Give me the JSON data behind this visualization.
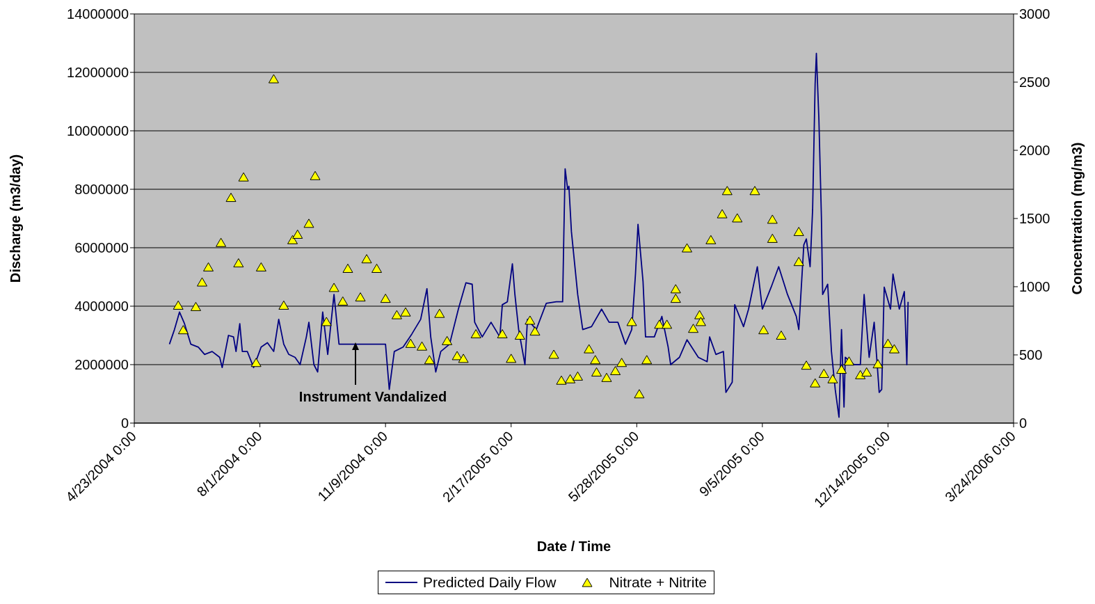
{
  "chart_data": {
    "type": "line",
    "xlabel": "Date / Time",
    "ylabel": "Discharge (m3/day)",
    "y2label": "Concentration (mg/m3)",
    "xlim": [
      "2004-04-23",
      "2006-03-24"
    ],
    "xticks": [
      {
        "value": "2004-04-23",
        "label": "4/23/2004 0:00"
      },
      {
        "value": "2004-08-01",
        "label": "8/1/2004 0:00"
      },
      {
        "value": "2004-11-09",
        "label": "11/9/2004 0:00"
      },
      {
        "value": "2005-02-17",
        "label": "2/17/2005 0:00"
      },
      {
        "value": "2005-05-28",
        "label": "5/28/2005 0:00"
      },
      {
        "value": "2005-09-05",
        "label": "9/5/2005 0:00"
      },
      {
        "value": "2005-12-14",
        "label": "12/14/2005 0:00"
      },
      {
        "value": "2006-03-24",
        "label": "3/24/2006 0:00"
      }
    ],
    "ylim": [
      0,
      14000000
    ],
    "yticks": [
      0,
      2000000,
      4000000,
      6000000,
      8000000,
      10000000,
      12000000,
      14000000
    ],
    "y2lim": [
      0,
      3000
    ],
    "y2ticks": [
      0,
      500,
      1000,
      1500,
      2000,
      2500,
      3000
    ],
    "grid": "y",
    "legend": "bottom",
    "annotations": [
      "Instrument Vandalized"
    ],
    "series": [
      {
        "name": "Predicted Daily Flow",
        "type": "line",
        "color": "#000080",
        "line_style": "solid",
        "x": [
          "2004-05-21",
          "2004-05-25",
          "2004-05-29",
          "2004-06-02",
          "2004-06-07",
          "2004-06-13",
          "2004-06-18",
          "2004-06-24",
          "2004-06-30",
          "2004-07-02",
          "2004-07-07",
          "2004-07-11",
          "2004-07-13",
          "2004-07-16",
          "2004-07-18",
          "2004-07-22",
          "2004-07-27",
          "2004-08-02",
          "2004-08-07",
          "2004-08-12",
          "2004-08-16",
          "2004-08-20",
          "2004-08-24",
          "2004-08-29",
          "2004-09-02",
          "2004-09-07",
          "2004-09-09",
          "2004-09-13",
          "2004-09-16",
          "2004-09-20",
          "2004-09-24",
          "2004-09-29",
          "2004-10-03",
          "2004-11-09",
          "2004-11-12",
          "2004-11-16",
          "2004-11-23",
          "2004-11-30",
          "2004-12-07",
          "2004-12-12",
          "2004-12-15",
          "2004-12-19",
          "2004-12-23",
          "2004-12-30",
          "2005-01-06",
          "2005-01-12",
          "2005-01-17",
          "2005-01-19",
          "2005-01-25",
          "2005-02-01",
          "2005-02-08",
          "2005-02-10",
          "2005-02-14",
          "2005-02-18",
          "2005-02-20",
          "2005-02-23",
          "2005-02-28",
          "2005-03-02",
          "2005-03-09",
          "2005-03-17",
          "2005-03-25",
          "2005-03-30",
          "2005-03-31",
          "2005-04-01",
          "2005-04-03",
          "2005-04-04",
          "2005-04-06",
          "2005-04-11",
          "2005-04-15",
          "2005-04-22",
          "2005-04-30",
          "2005-05-06",
          "2005-05-13",
          "2005-05-19",
          "2005-05-24",
          "2005-05-27",
          "2005-05-29",
          "2005-06-02",
          "2005-06-04",
          "2005-06-11",
          "2005-06-17",
          "2005-06-22",
          "2005-06-24",
          "2005-07-01",
          "2005-07-07",
          "2005-07-16",
          "2005-07-23",
          "2005-07-25",
          "2005-07-30",
          "2005-08-05",
          "2005-08-07",
          "2005-08-12",
          "2005-08-14",
          "2005-08-21",
          "2005-08-25",
          "2005-09-01",
          "2005-09-05",
          "2005-09-12",
          "2005-09-18",
          "2005-09-25",
          "2005-10-02",
          "2005-10-04",
          "2005-10-08",
          "2005-10-10",
          "2005-10-13",
          "2005-10-15",
          "2005-10-17",
          "2005-10-18",
          "2005-10-20",
          "2005-10-22",
          "2005-10-23",
          "2005-10-27",
          "2005-10-30",
          "2005-11-02",
          "2005-11-05",
          "2005-11-07",
          "2005-11-09",
          "2005-11-10",
          "2005-11-17",
          "2005-11-22",
          "2005-11-25",
          "2005-11-29",
          "2005-12-03",
          "2005-12-07",
          "2005-12-09",
          "2005-12-11",
          "2005-12-16",
          "2005-12-18",
          "2005-12-23",
          "2005-12-27",
          "2005-12-29",
          "2005-12-30"
        ],
        "values": [
          2700000,
          3200000,
          3800000,
          3400000,
          2700000,
          2600000,
          2350000,
          2450000,
          2250000,
          1900000,
          3000000,
          2950000,
          2450000,
          3400000,
          2450000,
          2450000,
          1900000,
          2600000,
          2750000,
          2450000,
          3550000,
          2700000,
          2350000,
          2250000,
          2000000,
          2950000,
          3450000,
          2000000,
          1750000,
          3800000,
          2350000,
          4400000,
          2700000,
          2700000,
          1150000,
          2450000,
          2600000,
          3050000,
          3550000,
          4600000,
          2950000,
          1750000,
          2450000,
          2700000,
          3900000,
          4800000,
          4750000,
          3450000,
          2950000,
          3450000,
          2950000,
          4050000,
          4150000,
          5450000,
          4400000,
          3200000,
          2000000,
          3550000,
          3200000,
          4100000,
          4150000,
          4150000,
          6550000,
          8700000,
          8000000,
          8100000,
          6550000,
          4400000,
          3200000,
          3300000,
          3900000,
          3450000,
          3450000,
          2700000,
          3200000,
          5100000,
          6800000,
          4850000,
          2950000,
          2950000,
          3650000,
          2600000,
          2000000,
          2250000,
          2850000,
          2250000,
          2100000,
          2950000,
          2350000,
          2450000,
          1050000,
          1400000,
          4050000,
          3300000,
          3900000,
          5350000,
          3900000,
          4650000,
          5350000,
          4400000,
          3650000,
          3200000,
          6100000,
          6300000,
          5350000,
          7300000,
          11600000,
          12650000,
          10400000,
          7050000,
          4400000,
          4750000,
          2450000,
          1150000,
          200000,
          3200000,
          550000,
          2250000,
          2000000,
          2000000,
          4400000,
          2250000,
          3450000,
          1050000,
          1150000,
          4650000,
          3900000,
          5100000,
          3900000,
          4500000,
          2000000,
          4150000
        ]
      },
      {
        "name": "Nitrate + Nitrite",
        "type": "scatter",
        "axis": "y2",
        "color": "#ffff00",
        "marker": "triangle",
        "x": [
          "2004-05-28",
          "2004-06-01",
          "2004-06-11",
          "2004-06-16",
          "2004-06-21",
          "2004-07-01",
          "2004-07-09",
          "2004-07-15",
          "2004-07-19",
          "2004-07-29",
          "2004-08-02",
          "2004-08-12",
          "2004-08-20",
          "2004-08-27",
          "2004-08-31",
          "2004-09-09",
          "2004-09-14",
          "2004-09-23",
          "2004-09-29",
          "2004-10-06",
          "2004-10-10",
          "2004-10-20",
          "2004-10-25",
          "2004-11-02",
          "2004-11-09",
          "2004-11-18",
          "2004-11-25",
          "2004-11-29",
          "2004-12-08",
          "2004-12-14",
          "2004-12-22",
          "2004-12-28",
          "2005-01-05",
          "2005-01-10",
          "2005-01-20",
          "2005-02-10",
          "2005-02-17",
          "2005-02-24",
          "2005-03-04",
          "2005-03-08",
          "2005-03-23",
          "2005-03-29",
          "2005-04-05",
          "2005-04-11",
          "2005-04-20",
          "2005-04-25",
          "2005-04-26",
          "2005-05-04",
          "2005-05-11",
          "2005-05-16",
          "2005-05-24",
          "2005-05-30",
          "2005-06-05",
          "2005-06-15",
          "2005-06-21",
          "2005-06-28",
          "2005-06-28",
          "2005-07-07",
          "2005-07-12",
          "2005-07-17",
          "2005-07-18",
          "2005-07-26",
          "2005-08-04",
          "2005-08-08",
          "2005-08-16",
          "2005-08-30",
          "2005-09-06",
          "2005-09-13",
          "2005-09-13",
          "2005-09-20",
          "2005-10-04",
          "2005-10-04",
          "2005-10-10",
          "2005-10-17",
          "2005-10-24",
          "2005-10-31",
          "2005-11-07",
          "2005-11-13",
          "2005-11-22",
          "2005-11-27",
          "2005-12-06",
          "2005-12-14",
          "2005-12-19"
        ],
        "values": [
          860,
          680,
          850,
          1030,
          1140,
          1320,
          1650,
          1170,
          1800,
          440,
          1140,
          2520,
          860,
          1340,
          1380,
          1460,
          1810,
          740,
          990,
          890,
          1130,
          920,
          1200,
          1130,
          910,
          790,
          810,
          580,
          560,
          460,
          800,
          600,
          490,
          470,
          650,
          650,
          470,
          640,
          750,
          670,
          500,
          310,
          320,
          340,
          540,
          460,
          370,
          330,
          380,
          440,
          740,
          210,
          460,
          720,
          720,
          980,
          910,
          1280,
          690,
          790,
          740,
          1340,
          1530,
          1700,
          1500,
          1700,
          680,
          1490,
          1350,
          640,
          1400,
          1180,
          420,
          290,
          360,
          320,
          390,
          450,
          350,
          370,
          430,
          580,
          540
        ]
      }
    ]
  }
}
